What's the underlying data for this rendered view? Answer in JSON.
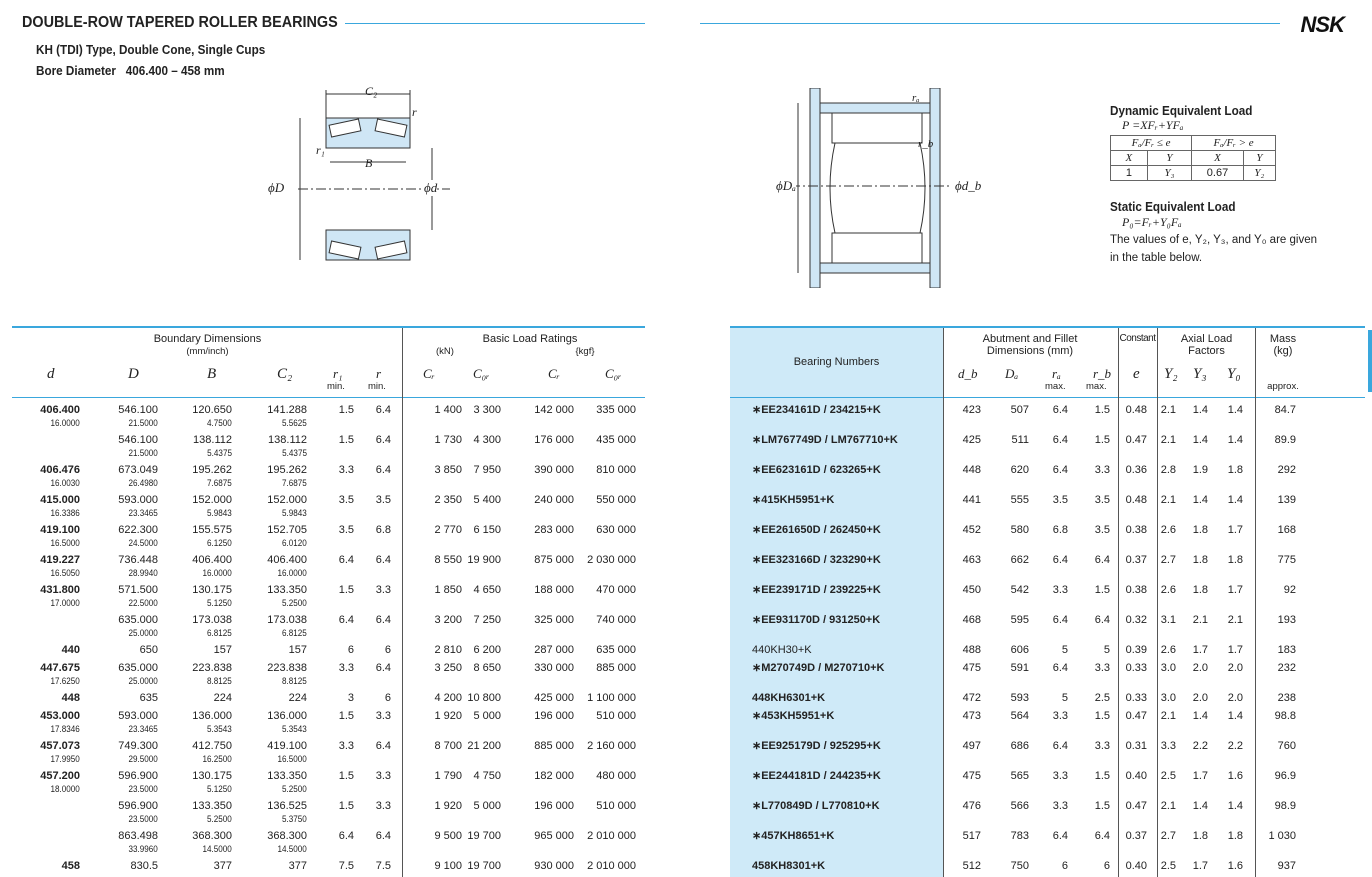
{
  "header": {
    "title": "DOUBLE-ROW TAPERED ROLLER BEARINGS",
    "type_line": "KH (TDI) Type, Double Cone, Single Cups",
    "bore_label": "Bore Diameter",
    "bore_range": "406.400 – 458 mm",
    "logo": "NSK"
  },
  "diagram_labels": {
    "C2": "C₂",
    "r": "r",
    "r1": "r₁",
    "B": "B",
    "D": "ϕD",
    "d": "ϕd",
    "ra": "rₐ",
    "rb": "r_b",
    "Da": "ϕDₐ",
    "db": "ϕd_b"
  },
  "load": {
    "dyn_title": "Dynamic Equivalent Load",
    "dyn_formula": "P =XFᵣ+YFₐ",
    "cond1": "Fₐ/Fᵣ ≤ e",
    "cond2": "Fₐ/Fᵣ > e",
    "X": "X",
    "Y": "Y",
    "v1": "1",
    "v2": "Y₃",
    "v3": "0.67",
    "v4": "Y₂",
    "static_title": "Static Equivalent Load",
    "static_formula": "P₀=Fᵣ+Y₀Fₐ",
    "note1": "The values of e, Y₂, Y₃, and Y₀ are given",
    "note2": "in the table below."
  },
  "table_headers": {
    "boundary": "Boundary Dimensions",
    "boundary_unit": "(mm/inch)",
    "d": "d",
    "D": "D",
    "B": "B",
    "C2": "C₂",
    "r1": "r₁",
    "r": "r",
    "min": "min.",
    "basic": "Basic Load Ratings",
    "kN": "(kN)",
    "kgf": "{kgf}",
    "Cr": "Cᵣ",
    "C0r": "C₀ᵣ",
    "bearing": "Bearing Numbers",
    "abutment": "Abutment and Fillet",
    "abutment2": "Dimensions (mm)",
    "db": "d_b",
    "Da": "Dₐ",
    "ra": "rₐ",
    "rb": "r_b",
    "max": "max.",
    "constant": "Constant",
    "e": "e",
    "axial": "Axial Load",
    "axial2": "Factors",
    "Y2": "Y₂",
    "Y3": "Y₃",
    "Y0": "Y₀",
    "mass": "Mass",
    "mass_unit": "(kg)",
    "approx": "approx."
  },
  "rows": [
    {
      "d": [
        "406.400",
        "16.0000"
      ],
      "D": [
        "546.100",
        "21.5000"
      ],
      "B": [
        "120.650",
        "4.7500"
      ],
      "C2": [
        "141.288",
        "5.5625"
      ],
      "r1": "1.5",
      "r": "6.4",
      "Cr": "1 400",
      "C0r": "3 300",
      "Crk": "142 000",
      "C0rk": "335 000",
      "bn": "∗EE234161D / 234215+K",
      "db": "423",
      "Da": "507",
      "ra": "6.4",
      "rb": "1.5",
      "e": "0.48",
      "Y2": "2.1",
      "Y3": "1.4",
      "Y0": "1.4",
      "mass": "84.7"
    },
    {
      "d": [
        "",
        ""
      ],
      "D": [
        "546.100",
        "21.5000"
      ],
      "B": [
        "138.112",
        "5.4375"
      ],
      "C2": [
        "138.112",
        "5.4375"
      ],
      "r1": "1.5",
      "r": "6.4",
      "Cr": "1 730",
      "C0r": "4 300",
      "Crk": "176 000",
      "C0rk": "435 000",
      "bn": "∗LM767749D / LM767710+K",
      "db": "425",
      "Da": "511",
      "ra": "6.4",
      "rb": "1.5",
      "e": "0.47",
      "Y2": "2.1",
      "Y3": "1.4",
      "Y0": "1.4",
      "mass": "89.9"
    },
    {
      "d": [
        "406.476",
        "16.0030"
      ],
      "D": [
        "673.049",
        "26.4980"
      ],
      "B": [
        "195.262",
        "7.6875"
      ],
      "C2": [
        "195.262",
        "7.6875"
      ],
      "r1": "3.3",
      "r": "6.4",
      "Cr": "3 850",
      "C0r": "7 950",
      "Crk": "390 000",
      "C0rk": "810 000",
      "bn": "∗EE623161D / 623265+K",
      "db": "448",
      "Da": "620",
      "ra": "6.4",
      "rb": "3.3",
      "e": "0.36",
      "Y2": "2.8",
      "Y3": "1.9",
      "Y0": "1.8",
      "mass": "292"
    },
    {
      "d": [
        "415.000",
        "16.3386"
      ],
      "D": [
        "593.000",
        "23.3465"
      ],
      "B": [
        "152.000",
        "5.9843"
      ],
      "C2": [
        "152.000",
        "5.9843"
      ],
      "r1": "3.5",
      "r": "3.5",
      "Cr": "2 350",
      "C0r": "5 400",
      "Crk": "240 000",
      "C0rk": "550 000",
      "bn": "∗415KH5951+K",
      "db": "441",
      "Da": "555",
      "ra": "3.5",
      "rb": "3.5",
      "e": "0.48",
      "Y2": "2.1",
      "Y3": "1.4",
      "Y0": "1.4",
      "mass": "139"
    },
    {
      "d": [
        "419.100",
        "16.5000"
      ],
      "D": [
        "622.300",
        "24.5000"
      ],
      "B": [
        "155.575",
        "6.1250"
      ],
      "C2": [
        "152.705",
        "6.0120"
      ],
      "r1": "3.5",
      "r": "6.8",
      "Cr": "2 770",
      "C0r": "6 150",
      "Crk": "283 000",
      "C0rk": "630 000",
      "bn": "∗EE261650D / 262450+K",
      "db": "452",
      "Da": "580",
      "ra": "6.8",
      "rb": "3.5",
      "e": "0.38",
      "Y2": "2.6",
      "Y3": "1.8",
      "Y0": "1.7",
      "mass": "168"
    },
    {
      "d": [
        "419.227",
        "16.5050"
      ],
      "D": [
        "736.448",
        "28.9940"
      ],
      "B": [
        "406.400",
        "16.0000"
      ],
      "C2": [
        "406.400",
        "16.0000"
      ],
      "r1": "6.4",
      "r": "6.4",
      "Cr": "8 550",
      "C0r": "19 900",
      "Crk": "875 000",
      "C0rk": "2 030 000",
      "bn": "∗EE323166D / 323290+K",
      "db": "463",
      "Da": "662",
      "ra": "6.4",
      "rb": "6.4",
      "e": "0.37",
      "Y2": "2.7",
      "Y3": "1.8",
      "Y0": "1.8",
      "mass": "775"
    },
    {
      "d": [
        "431.800",
        "17.0000"
      ],
      "D": [
        "571.500",
        "22.5000"
      ],
      "B": [
        "130.175",
        "5.1250"
      ],
      "C2": [
        "133.350",
        "5.2500"
      ],
      "r1": "1.5",
      "r": "3.3",
      "Cr": "1 850",
      "C0r": "4 650",
      "Crk": "188 000",
      "C0rk": "470 000",
      "bn": "∗EE239171D / 239225+K",
      "db": "450",
      "Da": "542",
      "ra": "3.3",
      "rb": "1.5",
      "e": "0.38",
      "Y2": "2.6",
      "Y3": "1.8",
      "Y0": "1.7",
      "mass": "92"
    },
    {
      "d": [
        "",
        ""
      ],
      "D": [
        "635.000",
        "25.0000"
      ],
      "B": [
        "173.038",
        "6.8125"
      ],
      "C2": [
        "173.038",
        "6.8125"
      ],
      "r1": "6.4",
      "r": "6.4",
      "Cr": "3 200",
      "C0r": "7 250",
      "Crk": "325 000",
      "C0rk": "740 000",
      "bn": "∗EE931170D / 931250+K",
      "db": "468",
      "Da": "595",
      "ra": "6.4",
      "rb": "6.4",
      "e": "0.32",
      "Y2": "3.1",
      "Y3": "2.1",
      "Y0": "2.1",
      "mass": "193"
    },
    {
      "d": [
        "440",
        ""
      ],
      "D": [
        "650",
        ""
      ],
      "B": [
        "157",
        ""
      ],
      "C2": [
        "157",
        ""
      ],
      "r1": "6",
      "r": "6",
      "Cr": "2 810",
      "C0r": "6 200",
      "Crk": "287 000",
      "C0rk": "635 000",
      "bn": "440KH30+K",
      "light": true,
      "db": "488",
      "Da": "606",
      "ra": "5",
      "rb": "5",
      "e": "0.39",
      "Y2": "2.6",
      "Y3": "1.7",
      "Y0": "1.7",
      "mass": "183"
    },
    {
      "d": [
        "447.675",
        "17.6250"
      ],
      "D": [
        "635.000",
        "25.0000"
      ],
      "B": [
        "223.838",
        "8.8125"
      ],
      "C2": [
        "223.838",
        "8.8125"
      ],
      "r1": "3.3",
      "r": "6.4",
      "Cr": "3 250",
      "C0r": "8 650",
      "Crk": "330 000",
      "C0rk": "885 000",
      "bn": "∗M270749D / M270710+K",
      "db": "475",
      "Da": "591",
      "ra": "6.4",
      "rb": "3.3",
      "e": "0.33",
      "Y2": "3.0",
      "Y3": "2.0",
      "Y0": "2.0",
      "mass": "232"
    },
    {
      "d": [
        "448",
        ""
      ],
      "D": [
        "635",
        ""
      ],
      "B": [
        "224",
        ""
      ],
      "C2": [
        "224",
        ""
      ],
      "r1": "3",
      "r": "6",
      "Cr": "4 200",
      "C0r": "10 800",
      "Crk": "425 000",
      "C0rk": "1 100 000",
      "bn": "448KH6301+K",
      "db": "472",
      "Da": "593",
      "ra": "5",
      "rb": "2.5",
      "e": "0.33",
      "Y2": "3.0",
      "Y3": "2.0",
      "Y0": "2.0",
      "mass": "238"
    },
    {
      "d": [
        "453.000",
        "17.8346"
      ],
      "D": [
        "593.000",
        "23.3465"
      ],
      "B": [
        "136.000",
        "5.3543"
      ],
      "C2": [
        "136.000",
        "5.3543"
      ],
      "r1": "1.5",
      "r": "3.3",
      "Cr": "1 920",
      "C0r": "5 000",
      "Crk": "196 000",
      "C0rk": "510 000",
      "bn": "∗453KH5951+K",
      "db": "473",
      "Da": "564",
      "ra": "3.3",
      "rb": "1.5",
      "e": "0.47",
      "Y2": "2.1",
      "Y3": "1.4",
      "Y0": "1.4",
      "mass": "98.8"
    },
    {
      "d": [
        "457.073",
        "17.9950"
      ],
      "D": [
        "749.300",
        "29.5000"
      ],
      "B": [
        "412.750",
        "16.2500"
      ],
      "C2": [
        "419.100",
        "16.5000"
      ],
      "r1": "3.3",
      "r": "6.4",
      "Cr": "8 700",
      "C0r": "21 200",
      "Crk": "885 000",
      "C0rk": "2 160 000",
      "bn": "∗EE925179D / 925295+K",
      "db": "497",
      "Da": "686",
      "ra": "6.4",
      "rb": "3.3",
      "e": "0.31",
      "Y2": "3.3",
      "Y3": "2.2",
      "Y0": "2.2",
      "mass": "760"
    },
    {
      "d": [
        "457.200",
        "18.0000"
      ],
      "D": [
        "596.900",
        "23.5000"
      ],
      "B": [
        "130.175",
        "5.1250"
      ],
      "C2": [
        "133.350",
        "5.2500"
      ],
      "r1": "1.5",
      "r": "3.3",
      "Cr": "1 790",
      "C0r": "4 750",
      "Crk": "182 000",
      "C0rk": "480 000",
      "bn": "∗EE244181D / 244235+K",
      "db": "475",
      "Da": "565",
      "ra": "3.3",
      "rb": "1.5",
      "e": "0.40",
      "Y2": "2.5",
      "Y3": "1.7",
      "Y0": "1.6",
      "mass": "96.9"
    },
    {
      "d": [
        "",
        ""
      ],
      "D": [
        "596.900",
        "23.5000"
      ],
      "B": [
        "133.350",
        "5.2500"
      ],
      "C2": [
        "136.525",
        "5.3750"
      ],
      "r1": "1.5",
      "r": "3.3",
      "Cr": "1 920",
      "C0r": "5 000",
      "Crk": "196 000",
      "C0rk": "510 000",
      "bn": "∗L770849D / L770810+K",
      "db": "476",
      "Da": "566",
      "ra": "3.3",
      "rb": "1.5",
      "e": "0.47",
      "Y2": "2.1",
      "Y3": "1.4",
      "Y0": "1.4",
      "mass": "98.9"
    },
    {
      "d": [
        "",
        ""
      ],
      "D": [
        "863.498",
        "33.9960"
      ],
      "B": [
        "368.300",
        "14.5000"
      ],
      "C2": [
        "368.300",
        "14.5000"
      ],
      "r1": "6.4",
      "r": "6.4",
      "Cr": "9 500",
      "C0r": "19 700",
      "Crk": "965 000",
      "C0rk": "2 010 000",
      "bn": "∗457KH8651+K",
      "db": "517",
      "Da": "783",
      "ra": "6.4",
      "rb": "6.4",
      "e": "0.37",
      "Y2": "2.7",
      "Y3": "1.8",
      "Y0": "1.8",
      "mass": "1 030"
    },
    {
      "d": [
        "458",
        ""
      ],
      "D": [
        "830.5",
        ""
      ],
      "B": [
        "377",
        ""
      ],
      "C2": [
        "377",
        ""
      ],
      "r1": "7.5",
      "r": "7.5",
      "Cr": "9 100",
      "C0r": "19 700",
      "Crk": "930 000",
      "C0rk": "2 010 000",
      "bn": "458KH8301+K",
      "db": "512",
      "Da": "750",
      "ra": "6",
      "rb": "6",
      "e": "0.40",
      "Y2": "2.5",
      "Y3": "1.7",
      "Y0": "1.6",
      "mass": "937"
    }
  ],
  "colors": {
    "accent": "#3aa7dd",
    "bearing_column": "#cfeaf8"
  }
}
